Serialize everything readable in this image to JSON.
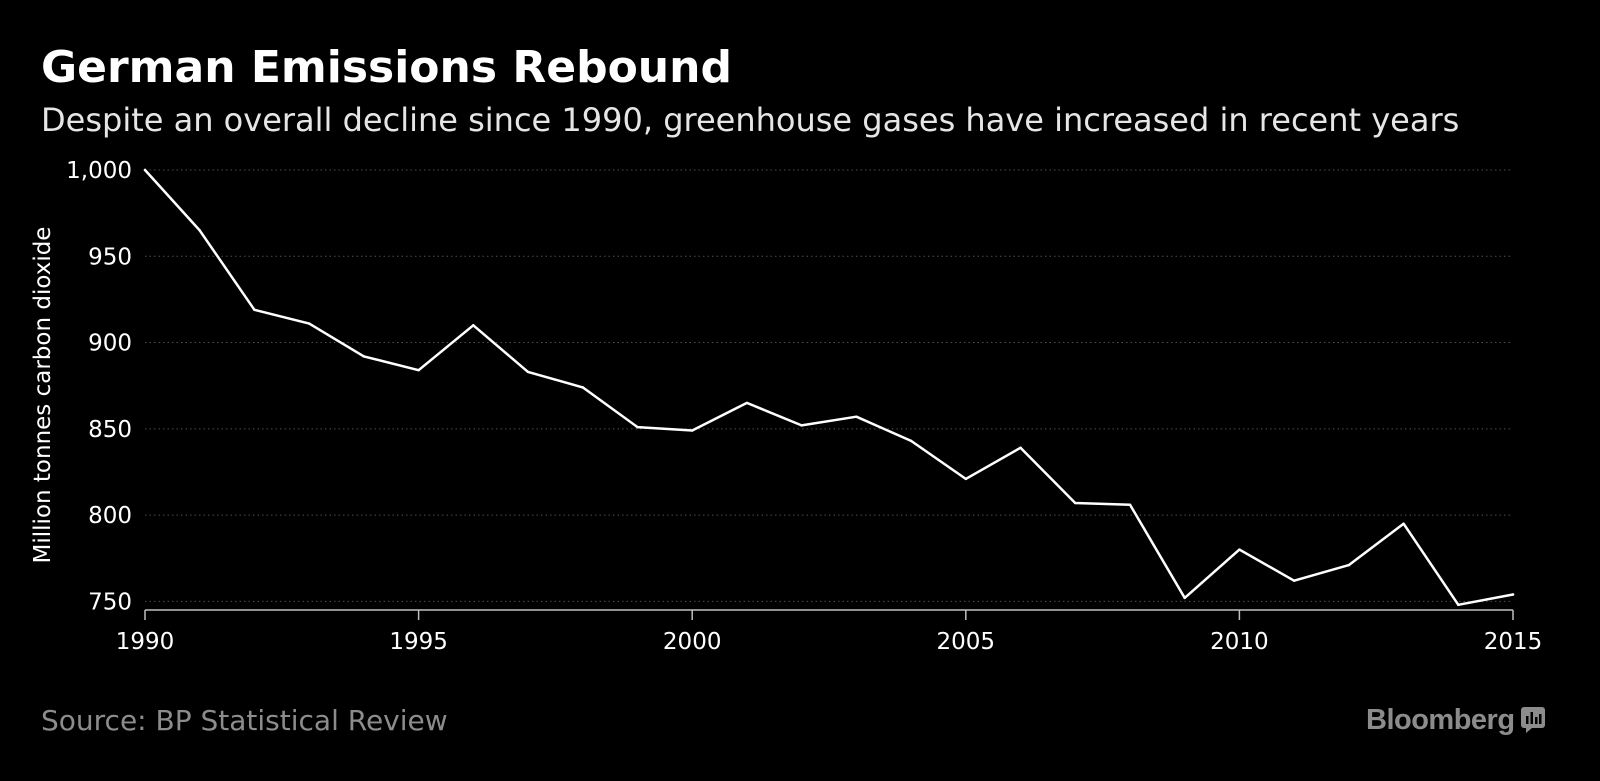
{
  "header": {
    "title": "German Emissions Rebound",
    "subtitle": "Despite an overall decline since 1990, greenhouse gases have increased in recent years"
  },
  "footer": {
    "source": "Source: BP Statistical Review",
    "brand": "Bloomberg",
    "brand_icon": "bloomberg-chart-icon"
  },
  "colors": {
    "background": "#000000",
    "line": "#ffffff",
    "grid": "#4d4d4d",
    "muted_text": "#8c8c8c"
  },
  "chart_data": {
    "type": "line",
    "title": "German Emissions Rebound",
    "subtitle": "Despite an overall decline since 1990, greenhouse gases have increased in recent years",
    "xlabel": "",
    "ylabel": "Million tonnes carbon dioxide",
    "xlim": [
      1990,
      2015
    ],
    "ylim": [
      745,
      1000
    ],
    "x_ticks": [
      1990,
      1995,
      2000,
      2005,
      2010,
      2015
    ],
    "x_tick_labels": [
      "1990",
      "1995",
      "2000",
      "2005",
      "2010",
      "2015"
    ],
    "y_ticks": [
      750,
      800,
      850,
      900,
      950,
      1000
    ],
    "y_tick_labels": [
      "750",
      "800",
      "850",
      "900",
      "950",
      "1,000"
    ],
    "grid": "horizontal dotted",
    "legend": "none",
    "x": [
      1990,
      1991,
      1992,
      1993,
      1994,
      1995,
      1996,
      1997,
      1998,
      1999,
      2000,
      2001,
      2002,
      2003,
      2004,
      2005,
      2006,
      2007,
      2008,
      2009,
      2010,
      2011,
      2012,
      2013,
      2014,
      2015
    ],
    "series": [
      {
        "values": [
          1000,
          965,
          919,
          911,
          892,
          884,
          910,
          883,
          874,
          851,
          849,
          865,
          852,
          857,
          843,
          821,
          839,
          807,
          806,
          752,
          780,
          762,
          771,
          795,
          748,
          754
        ]
      }
    ]
  }
}
